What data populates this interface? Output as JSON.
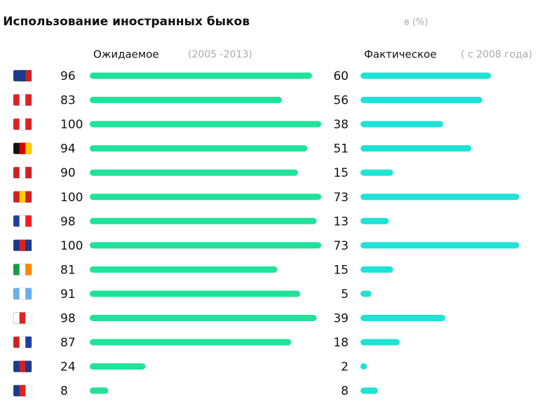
{
  "chart_data": {
    "type": "bar",
    "orientation": "horizontal",
    "title": "Использование иностранных быков",
    "title_note": "в (%)",
    "series": [
      {
        "name": "Ожидаемое",
        "period": "(2005 -2013)",
        "color": "#1fe39a",
        "values": [
          96,
          83,
          100,
          94,
          90,
          100,
          98,
          100,
          81,
          91,
          98,
          87,
          24,
          8
        ]
      },
      {
        "name": "Фактическое",
        "period": "( с 2008 года)",
        "color": "#1fe3d6",
        "values": [
          60,
          56,
          38,
          51,
          15,
          73,
          13,
          73,
          15,
          5,
          39,
          18,
          2,
          8
        ]
      }
    ]
  }
}
